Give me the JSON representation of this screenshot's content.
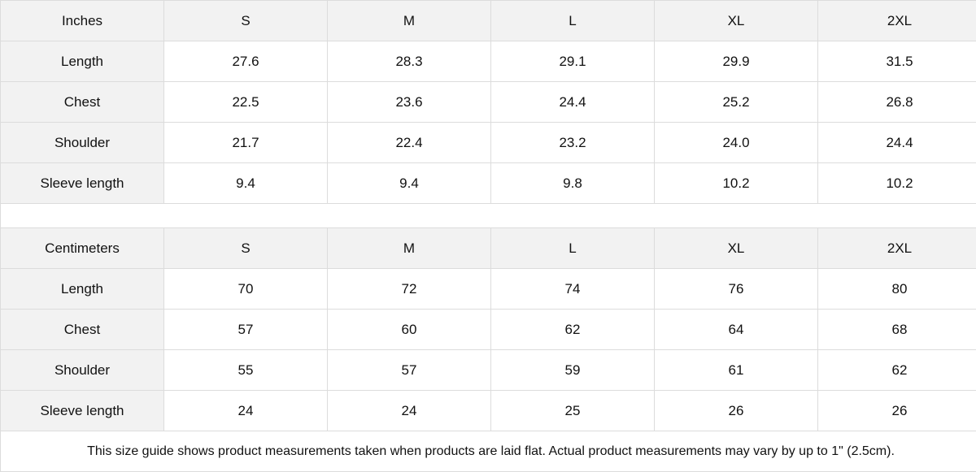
{
  "tables": [
    {
      "unit": "Inches",
      "sizes": [
        "S",
        "M",
        "L",
        "XL",
        "2XL"
      ],
      "rows": [
        {
          "label": "Length",
          "values": [
            "27.6",
            "28.3",
            "29.1",
            "29.9",
            "31.5"
          ]
        },
        {
          "label": "Chest",
          "values": [
            "22.5",
            "23.6",
            "24.4",
            "25.2",
            "26.8"
          ]
        },
        {
          "label": "Shoulder",
          "values": [
            "21.7",
            "22.4",
            "23.2",
            "24.0",
            "24.4"
          ]
        },
        {
          "label": "Sleeve length",
          "values": [
            "9.4",
            "9.4",
            "9.8",
            "10.2",
            "10.2"
          ]
        }
      ]
    },
    {
      "unit": "Centimeters",
      "sizes": [
        "S",
        "M",
        "L",
        "XL",
        "2XL"
      ],
      "rows": [
        {
          "label": "Length",
          "values": [
            "70",
            "72",
            "74",
            "76",
            "80"
          ]
        },
        {
          "label": "Chest",
          "values": [
            "57",
            "60",
            "62",
            "64",
            "68"
          ]
        },
        {
          "label": "Shoulder",
          "values": [
            "55",
            "57",
            "59",
            "61",
            "62"
          ]
        },
        {
          "label": "Sleeve length",
          "values": [
            "24",
            "24",
            "25",
            "26",
            "26"
          ]
        }
      ]
    }
  ],
  "note": "This size guide shows product measurements taken when products are laid flat.  Actual product measurements may vary by up to 1\" (2.5cm).",
  "colors": {
    "header_bg": "#f2f2f2",
    "border": "#dcdcdc"
  }
}
